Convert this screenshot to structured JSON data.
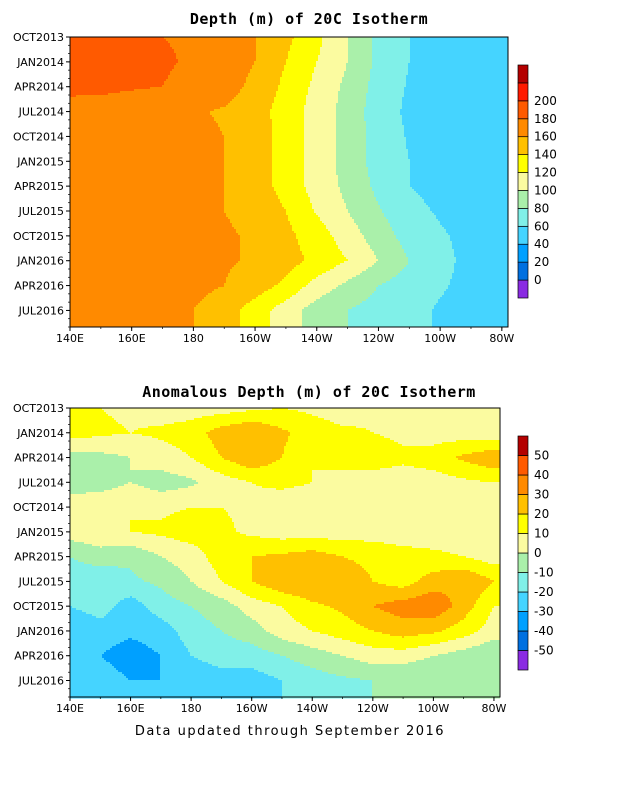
{
  "footer": "Data updated through September 2016",
  "colors": {
    "depth": [
      "#8a2be2",
      "#0070e0",
      "#00a0ff",
      "#45d4ff",
      "#80f0e8",
      "#aaf0aa",
      "#fbfba0",
      "#ffff00",
      "#ffc000",
      "#ff8a00",
      "#ff5a00",
      "#ff1a00",
      "#b40000"
    ],
    "anomaly": [
      "#8a2be2",
      "#0070e0",
      "#00a0ff",
      "#45d4ff",
      "#80f0e8",
      "#aaf0aa",
      "#fbfba0",
      "#ffff00",
      "#ffc000",
      "#ff8a00",
      "#ff5a00",
      "#b40000"
    ]
  },
  "chart_data": [
    {
      "type": "heatmap",
      "title": "Depth (m) of 20C Isotherm",
      "xlabel": "",
      "ylabel": "",
      "x": [
        140,
        150,
        160,
        170,
        180,
        190,
        200,
        210,
        220,
        230,
        240,
        250,
        260,
        270,
        280
      ],
      "xticks": [
        {
          "x": 140,
          "label": "140E"
        },
        {
          "x": 160,
          "label": "160E"
        },
        {
          "x": 180,
          "label": "180"
        },
        {
          "x": 200,
          "label": "160W"
        },
        {
          "x": 220,
          "label": "140W"
        },
        {
          "x": 240,
          "label": "120W"
        },
        {
          "x": 260,
          "label": "100W"
        },
        {
          "x": 280,
          "label": "80W"
        }
      ],
      "xlim": [
        140,
        282
      ],
      "y": [
        "OCT2013",
        "JAN2014",
        "APR2014",
        "JUL2014",
        "OCT2014",
        "JAN2015",
        "APR2015",
        "JUL2015",
        "OCT2015",
        "JAN2016",
        "APR2016",
        "JUL2016"
      ],
      "ytick_labels": [
        "OCT2013",
        "JAN2014",
        "APR2014",
        "JUL2014",
        "OCT2014",
        "JAN2015",
        "APR2015",
        "JUL2015",
        "OCT2015",
        "JAN2016",
        "APR2016",
        "JUL2016"
      ],
      "ylim": [
        "OCT2013",
        "SEP2016"
      ],
      "colorbar": {
        "levels": [
          -10,
          0,
          20,
          40,
          60,
          80,
          100,
          120,
          140,
          160,
          180,
          200,
          220
        ],
        "labels": [
          "0",
          "20",
          "40",
          "60",
          "80",
          "100",
          "120",
          "140",
          "160",
          "180",
          "200"
        ]
      },
      "values": [
        [
          185,
          185,
          185,
          180,
          178,
          170,
          160,
          145,
          125,
          100,
          75,
          60,
          55,
          55,
          50
        ],
        [
          190,
          190,
          185,
          182,
          178,
          170,
          160,
          140,
          120,
          100,
          75,
          60,
          55,
          50,
          45
        ],
        [
          185,
          185,
          182,
          180,
          175,
          168,
          155,
          135,
          115,
          95,
          72,
          58,
          52,
          48,
          45
        ],
        [
          172,
          170,
          168,
          165,
          162,
          158,
          150,
          130,
          112,
          92,
          70,
          56,
          50,
          45,
          42
        ],
        [
          170,
          168,
          170,
          168,
          165,
          160,
          150,
          132,
          112,
          92,
          72,
          58,
          52,
          48,
          45
        ],
        [
          172,
          175,
          168,
          170,
          165,
          160,
          152,
          130,
          112,
          92,
          72,
          60,
          55,
          50,
          48
        ],
        [
          168,
          165,
          165,
          165,
          165,
          160,
          150,
          132,
          112,
          95,
          75,
          60,
          55,
          52,
          50
        ],
        [
          162,
          162,
          162,
          162,
          162,
          160,
          155,
          140,
          118,
          100,
          82,
          65,
          58,
          55,
          52
        ],
        [
          165,
          165,
          165,
          168,
          168,
          162,
          158,
          145,
          130,
          110,
          90,
          72,
          62,
          55,
          50
        ],
        [
          165,
          168,
          168,
          168,
          168,
          162,
          158,
          148,
          135,
          120,
          100,
          80,
          65,
          55,
          48
        ],
        [
          162,
          165,
          165,
          165,
          165,
          160,
          150,
          135,
          112,
          95,
          80,
          70,
          62,
          55,
          50
        ],
        [
          160,
          162,
          162,
          162,
          160,
          150,
          130,
          110,
          90,
          80,
          72,
          65,
          58,
          52,
          45
        ]
      ]
    },
    {
      "type": "heatmap",
      "title": "Anomalous Depth (m) of 20C Isotherm",
      "xlabel": "",
      "ylabel": "",
      "x": [
        140,
        150,
        160,
        170,
        180,
        190,
        200,
        210,
        220,
        230,
        240,
        250,
        260,
        270,
        280
      ],
      "xticks": [
        {
          "x": 140,
          "label": "140E"
        },
        {
          "x": 160,
          "label": "160E"
        },
        {
          "x": 180,
          "label": "180"
        },
        {
          "x": 200,
          "label": "160W"
        },
        {
          "x": 220,
          "label": "140W"
        },
        {
          "x": 240,
          "label": "120W"
        },
        {
          "x": 260,
          "label": "100W"
        },
        {
          "x": 280,
          "label": "80W"
        }
      ],
      "xlim": [
        140,
        282
      ],
      "y": [
        "OCT2013",
        "JAN2014",
        "APR2014",
        "JUL2014",
        "OCT2014",
        "JAN2015",
        "APR2015",
        "JUL2015",
        "OCT2015",
        "JAN2016",
        "APR2016",
        "JUL2016"
      ],
      "ytick_labels": [
        "OCT2013",
        "JAN2014",
        "APR2014",
        "JUL2014",
        "OCT2014",
        "JAN2015",
        "APR2015",
        "JUL2015",
        "OCT2015",
        "JAN2016",
        "APR2016",
        "JUL2016"
      ],
      "ylim": [
        "OCT2013",
        "SEP2016"
      ],
      "colorbar": {
        "levels": [
          -60,
          -50,
          -40,
          -30,
          -20,
          -10,
          0,
          10,
          20,
          30,
          40,
          50,
          60
        ],
        "labels": [
          "-50",
          "-40",
          "-30",
          "-20",
          "-10",
          "0",
          "10",
          "20",
          "30",
          "40",
          "50"
        ]
      },
      "values": [
        [
          12,
          10,
          8,
          5,
          5,
          5,
          8,
          10,
          8,
          5,
          8,
          10,
          8,
          5,
          5
        ],
        [
          15,
          12,
          10,
          12,
          15,
          25,
          30,
          22,
          15,
          12,
          10,
          8,
          5,
          5,
          3
        ],
        [
          -5,
          -3,
          0,
          5,
          10,
          20,
          28,
          20,
          10,
          12,
          15,
          12,
          15,
          22,
          28
        ],
        [
          -5,
          -5,
          0,
          -5,
          -2,
          5,
          10,
          12,
          10,
          8,
          5,
          5,
          5,
          8,
          10
        ],
        [
          5,
          8,
          10,
          8,
          10,
          10,
          8,
          5,
          5,
          3,
          0,
          3,
          5,
          3,
          5
        ],
        [
          5,
          8,
          10,
          12,
          15,
          12,
          8,
          5,
          5,
          5,
          5,
          3,
          5,
          5,
          8
        ],
        [
          -10,
          -5,
          -8,
          0,
          5,
          15,
          20,
          22,
          25,
          20,
          18,
          15,
          12,
          10,
          5
        ],
        [
          -15,
          -18,
          -12,
          -8,
          0,
          10,
          20,
          28,
          30,
          25,
          20,
          15,
          25,
          30,
          20
        ],
        [
          -20,
          -15,
          -25,
          -15,
          -10,
          -5,
          5,
          10,
          18,
          22,
          30,
          35,
          38,
          25,
          10
        ],
        [
          -30,
          -25,
          -28,
          -25,
          -15,
          -10,
          -5,
          5,
          10,
          15,
          20,
          25,
          22,
          15,
          5
        ],
        [
          -25,
          -30,
          -35,
          -30,
          -20,
          -15,
          -15,
          -10,
          -5,
          0,
          5,
          5,
          0,
          -5,
          -10
        ],
        [
          -20,
          -25,
          -30,
          -30,
          -28,
          -25,
          -25,
          -20,
          -15,
          -12,
          -10,
          -10,
          -10,
          -10,
          -5
        ]
      ]
    }
  ]
}
